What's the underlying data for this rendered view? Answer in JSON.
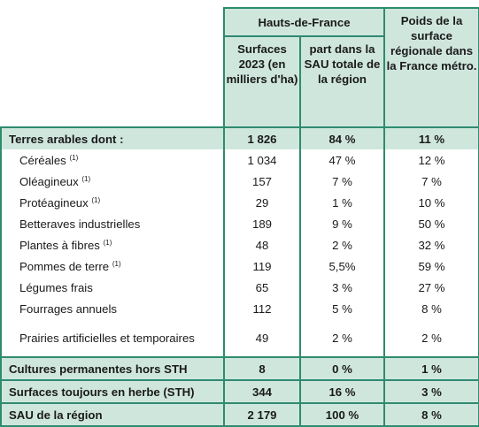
{
  "header": {
    "group": "Hauts-de-France",
    "col_surface": "Surfaces 2023 (en milliers d'ha)",
    "col_part": "part dans la SAU totale de la région",
    "col_poids": "Poids de la surface régionale dans la France métro."
  },
  "rows": [
    {
      "label": "Terres arables dont :",
      "note": "",
      "surface": "1 826",
      "part": "84 %",
      "poids": "11 %"
    },
    {
      "label": "Céréales",
      "note": "(1)",
      "surface": "1 034",
      "part": "47 %",
      "poids": "12 %"
    },
    {
      "label": "Oléagineux",
      "note": "(1)",
      "surface": "157",
      "part": "7 %",
      "poids": "7 %"
    },
    {
      "label": "Protéagineux",
      "note": "(1)",
      "surface": "29",
      "part": "1 %",
      "poids": "10 %"
    },
    {
      "label": "Betteraves industrielles",
      "note": "",
      "surface": "189",
      "part": "9 %",
      "poids": "50 %"
    },
    {
      "label": "Plantes à fibres",
      "note": "(1)",
      "surface": "48",
      "part": "2 %",
      "poids": "32 %"
    },
    {
      "label": "Pommes de terre",
      "note": "(1)",
      "surface": "119",
      "part": "5,5%",
      "poids": "59 %"
    },
    {
      "label": "Légumes frais",
      "note": "",
      "surface": "65",
      "part": "3 %",
      "poids": "27 %"
    },
    {
      "label": "Fourrages annuels",
      "note": "",
      "surface": "112",
      "part": "5 %",
      "poids": "8 %"
    },
    {
      "label": "Prairies artificielles et temporaires",
      "note": "",
      "surface": "49",
      "part": "2 %",
      "poids": "2 %"
    },
    {
      "label": "Cultures permanentes hors STH",
      "note": "",
      "surface": "8",
      "part": "0 %",
      "poids": "1 %"
    },
    {
      "label": "Surfaces toujours en herbe (STH)",
      "note": "",
      "surface": "344",
      "part": "16 %",
      "poids": "3 %"
    },
    {
      "label": "SAU de la région",
      "note": "",
      "surface": "2 179",
      "part": "100 %",
      "poids": "8 %"
    }
  ]
}
